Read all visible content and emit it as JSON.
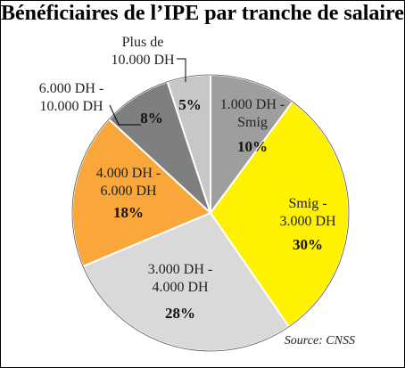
{
  "chart_data": {
    "type": "pie",
    "title": "Bénéficiaires de l’IPE par tranche de salaire",
    "source": "Source: CNSS",
    "slices": [
      {
        "label_lines": [
          "1.000 DH -",
          "Smig"
        ],
        "value": 10,
        "pct_label": "10%",
        "color": "#9e9e9e"
      },
      {
        "label_lines": [
          "Smig -",
          "3.000 DH"
        ],
        "value": 30,
        "pct_label": "30%",
        "color": "#fff200"
      },
      {
        "label_lines": [
          "3.000 DH -",
          "4.000 DH"
        ],
        "value": 28,
        "pct_label": "28%",
        "color": "#d9d9d9"
      },
      {
        "label_lines": [
          "4.000 DH -",
          "6.000 DH"
        ],
        "value": 18,
        "pct_label": "18%",
        "color": "#f9a63a"
      },
      {
        "label_lines": [
          "6.000 DH -",
          "10.000 DH"
        ],
        "value": 8,
        "pct_label": "8%",
        "color": "#7f7f7f"
      },
      {
        "label_lines": [
          "Plus de",
          "10.000 DH"
        ],
        "value": 5,
        "pct_label": "5%",
        "color": "#c7c7c7"
      }
    ]
  }
}
